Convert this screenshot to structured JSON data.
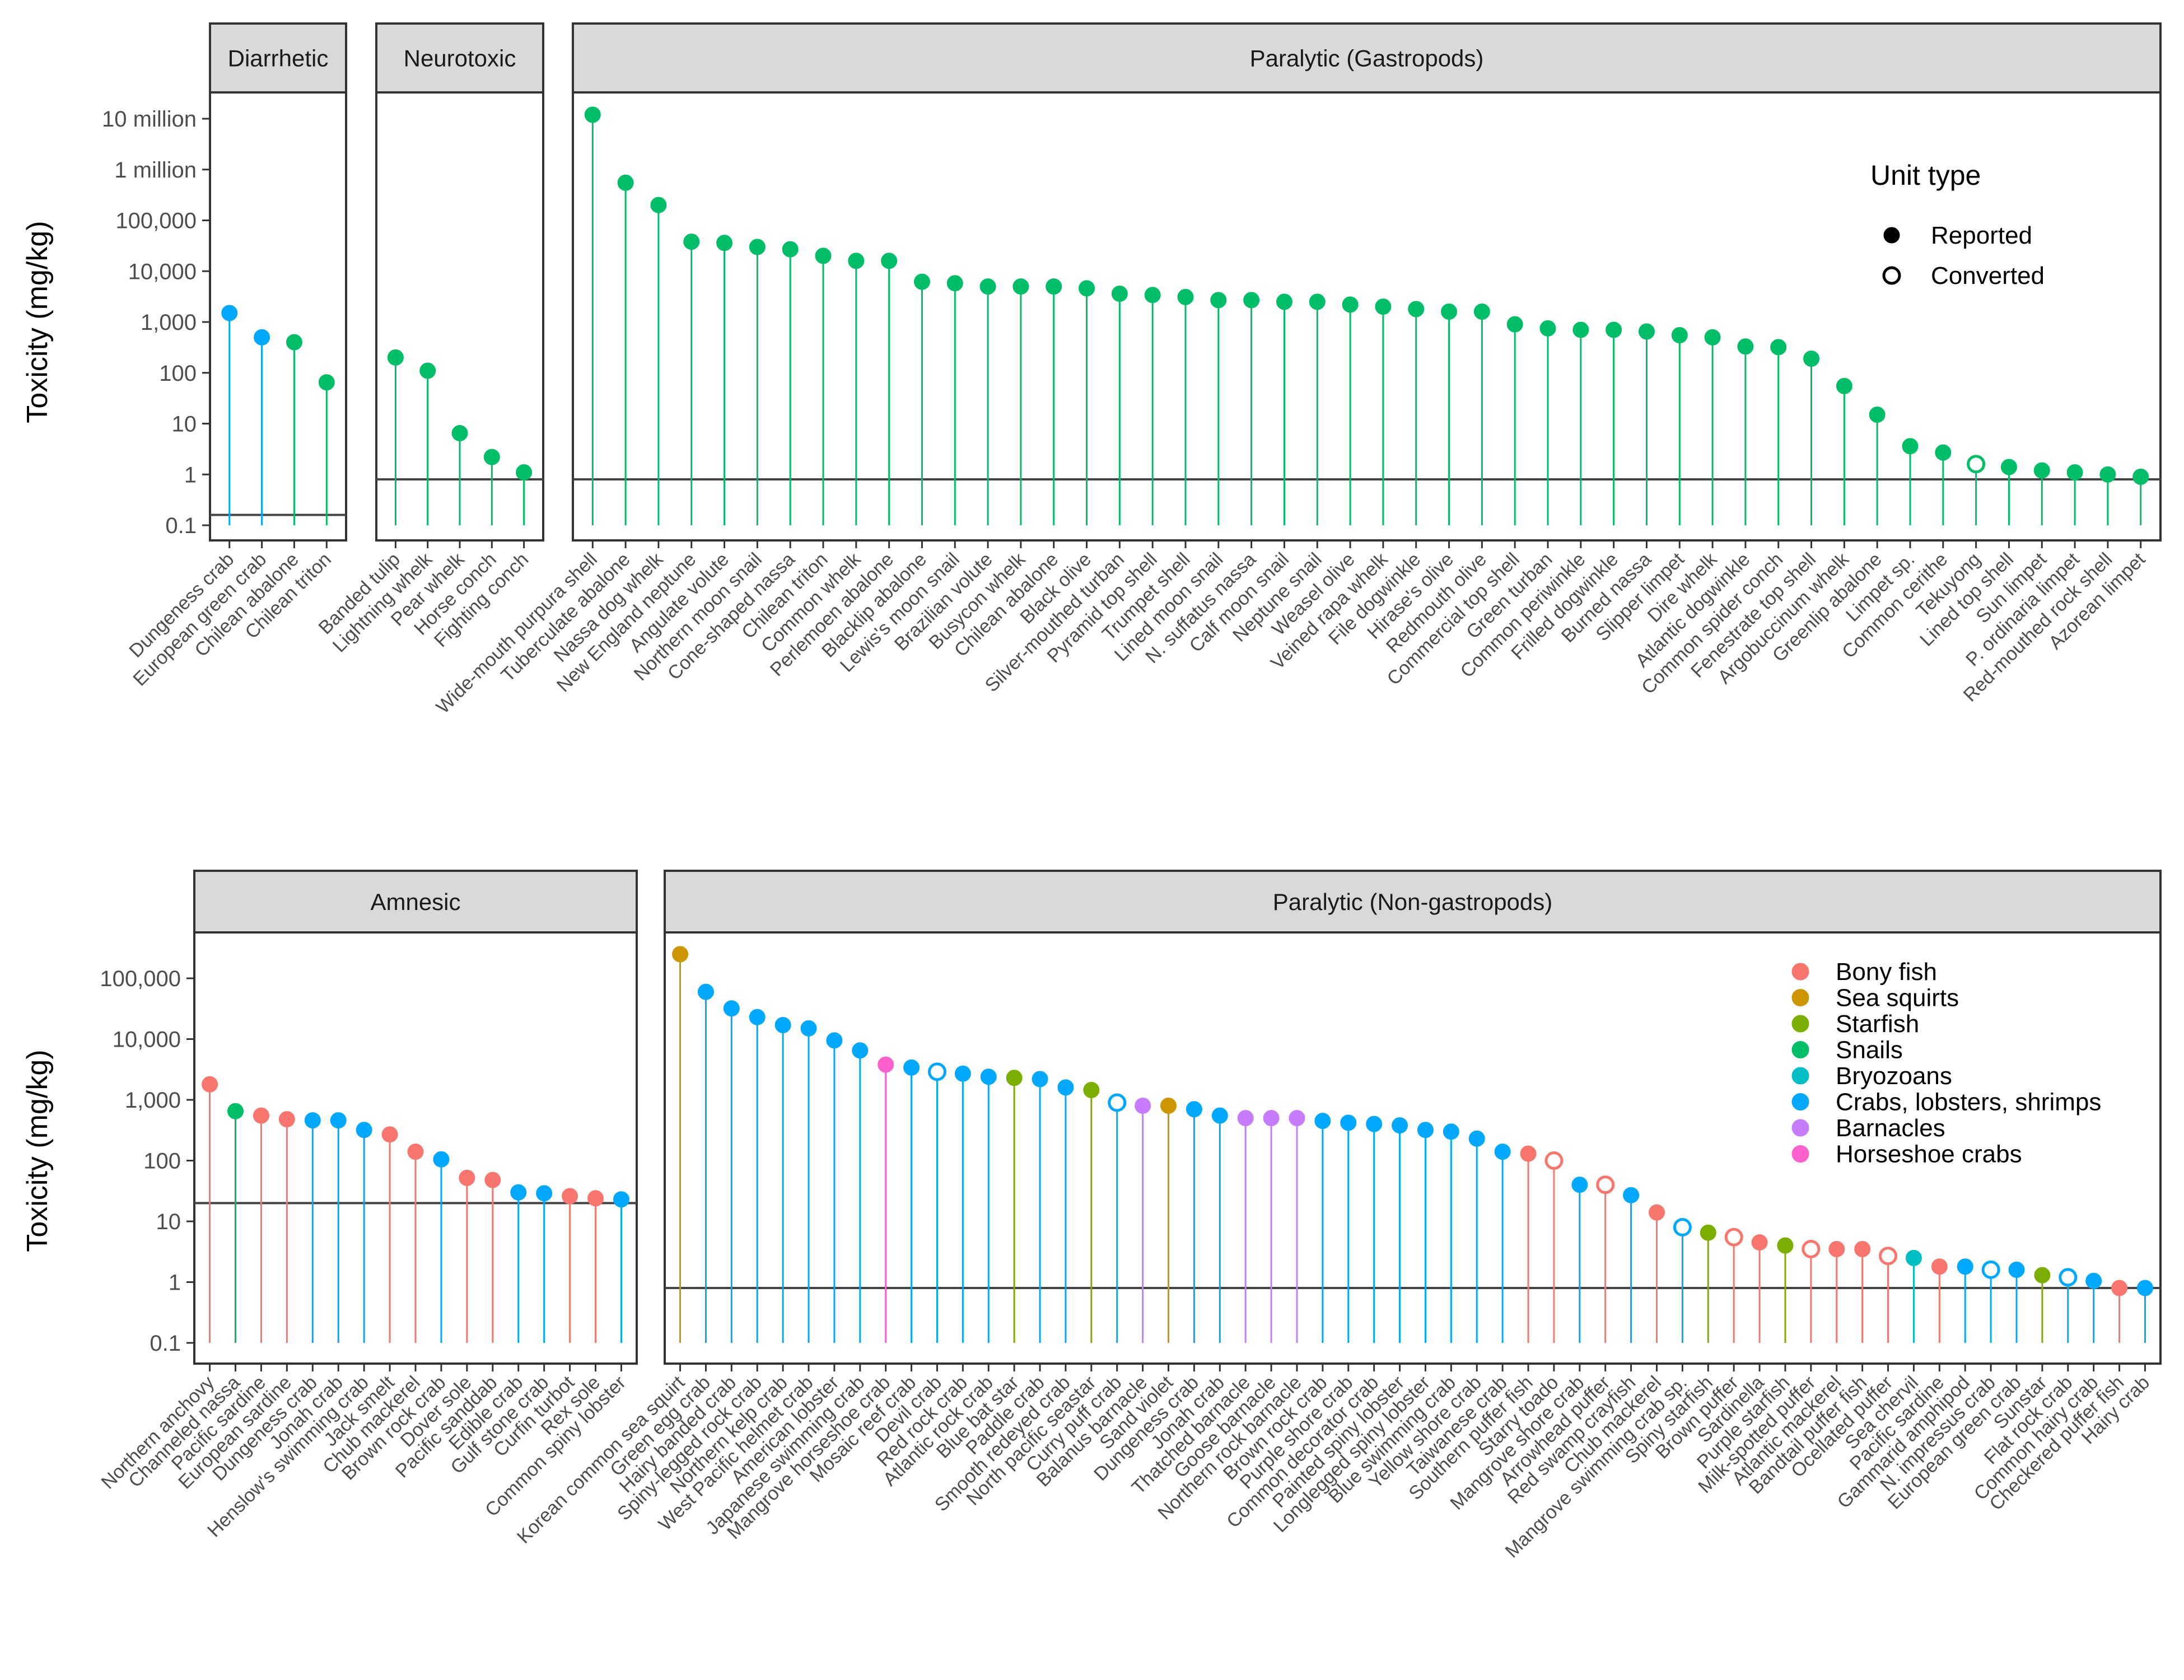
{
  "y_title": "Toxicity (mg/kg)",
  "chart_data": [
    {
      "type": "lollipop",
      "panel": "Diarrhetic",
      "y_scale": "log10",
      "ylim": [
        0.1,
        10000000
      ],
      "y_ticks": [
        0.1,
        1,
        10,
        100,
        1000,
        10000,
        100000,
        1000000,
        10000000
      ],
      "y_tick_labels": [
        "0.1",
        "1",
        "10",
        "100",
        "1,000",
        "10,000",
        "100,000",
        "1 million",
        "10 million"
      ],
      "reference_line": 0.16,
      "categories": [
        "Dungeness crab",
        "European green crab",
        "Chilean abalone",
        "Chilean triton"
      ],
      "values": [
        1500,
        500,
        400,
        65
      ],
      "groups": [
        "Crabs, lobsters, shrimps",
        "Crabs, lobsters, shrimps",
        "Snails",
        "Snails"
      ],
      "unit_type": [
        "R",
        "R",
        "R",
        "R"
      ]
    },
    {
      "type": "lollipop",
      "panel": "Neurotoxic",
      "y_scale": "log10",
      "ylim": [
        0.1,
        10000000
      ],
      "reference_line": 0.8,
      "categories": [
        "Banded tulip",
        "Lightning whelk",
        "Pear whelk",
        "Horse conch",
        "Fighting conch"
      ],
      "values": [
        200,
        110,
        6.5,
        2.2,
        1.1
      ],
      "groups": [
        "Snails",
        "Snails",
        "Snails",
        "Snails",
        "Snails"
      ],
      "unit_type": [
        "R",
        "R",
        "R",
        "R",
        "R"
      ]
    },
    {
      "type": "lollipop",
      "panel": "Paralytic (Gastropods)",
      "y_scale": "log10",
      "ylim": [
        0.1,
        10000000
      ],
      "reference_line": 0.8,
      "categories": [
        "Wide-mouth purpura shell",
        "Tuberculate abalone",
        "Nassa dog whelk",
        "New England neptune",
        "Angulate volute",
        "Northern moon snail",
        "Cone-shaped nassa",
        "Chilean triton",
        "Common whelk",
        "Perlemoen abalone",
        "Blacklip abalone",
        "Lewis's moon snail",
        "Brazilian volute",
        "Busycon whelk",
        "Chilean abalone",
        "Black olive",
        "Silver-mouthed turban",
        "Pyramid top shell",
        "Trumpet shell",
        "Lined moon snail",
        "N. suffatus nassa",
        "Calf moon snail",
        "Neptune snail",
        "Weasel olive",
        "Veined rapa whelk",
        "File dogwinkle",
        "Hirase's olive",
        "Redmouth olive",
        "Commercial top shell",
        "Green turban",
        "Common periwinkle",
        "Frilled dogwinkle",
        "Burned nassa",
        "Slipper limpet",
        "Dire whelk",
        "Atlantic dogwinkle",
        "Common spider conch",
        "Fenestrate top shell",
        "Argobuccinum whelk",
        "Greenlip abalone",
        "Limpet sp.",
        "Common cerithe",
        "Tekuyong",
        "Lined top shell",
        "Sun limpet",
        "P. ordinaria limpet",
        "Red-mouthed rock shell",
        "Azorean limpet"
      ],
      "values": [
        12000000,
        550000,
        200000,
        38000,
        36000,
        30000,
        27000,
        20000,
        16000,
        16000,
        6200,
        5800,
        5000,
        5000,
        5000,
        4600,
        3600,
        3400,
        3100,
        2700,
        2700,
        2500,
        2500,
        2200,
        2000,
        1800,
        1600,
        1600,
        900,
        750,
        700,
        700,
        650,
        550,
        500,
        330,
        320,
        190,
        55,
        15,
        3.6,
        2.7,
        1.6,
        1.4,
        1.2,
        1.1,
        1.0,
        0.9
      ],
      "groups": "Snails (all)",
      "unit_type": [
        "R",
        "R",
        "R",
        "R",
        "R",
        "R",
        "R",
        "R",
        "R",
        "R",
        "R",
        "R",
        "R",
        "R",
        "R",
        "R",
        "R",
        "R",
        "R",
        "R",
        "R",
        "R",
        "R",
        "R",
        "R",
        "R",
        "R",
        "R",
        "R",
        "R",
        "R",
        "R",
        "R",
        "R",
        "R",
        "R",
        "R",
        "R",
        "R",
        "R",
        "R",
        "R",
        "C",
        "R",
        "R",
        "R",
        "R",
        "R"
      ]
    },
    {
      "type": "lollipop",
      "panel": "Amnesic",
      "y_scale": "log10",
      "ylim": [
        0.1,
        200000
      ],
      "y_ticks": [
        0.1,
        1,
        10,
        100,
        1000,
        10000,
        100000
      ],
      "y_tick_labels": [
        "0.1",
        "1",
        "10",
        "100",
        "1,000",
        "10,000",
        "100,000"
      ],
      "reference_line": 20,
      "categories": [
        "Northern anchovy",
        "Channeled nassa",
        "Pacific sardine",
        "European sardine",
        "Dungeness crab",
        "Jonah crab",
        "Henslow's swimming crab",
        "Jack smelt",
        "Chub mackerel",
        "Brown rock crab",
        "Dover sole",
        "Pacific sanddab",
        "Edible crab",
        "Gulf stone crab",
        "Curfin turbot",
        "Rex sole",
        "Common spiny lobster"
      ],
      "values": [
        1800,
        650,
        550,
        480,
        460,
        460,
        320,
        270,
        140,
        105,
        52,
        48,
        30,
        29,
        26,
        24,
        23
      ],
      "groups": [
        "Bony fish",
        "Snails",
        "Bony fish",
        "Bony fish",
        "Crabs, lobsters, shrimps",
        "Crabs, lobsters, shrimps",
        "Crabs, lobsters, shrimps",
        "Bony fish",
        "Bony fish",
        "Crabs, lobsters, shrimps",
        "Bony fish",
        "Bony fish",
        "Crabs, lobsters, shrimps",
        "Crabs, lobsters, shrimps",
        "Bony fish",
        "Bony fish",
        "Crabs, lobsters, shrimps"
      ],
      "unit_type": [
        "R",
        "R",
        "R",
        "R",
        "R",
        "R",
        "R",
        "R",
        "R",
        "R",
        "R",
        "R",
        "R",
        "R",
        "R",
        "R",
        "R"
      ]
    },
    {
      "type": "lollipop",
      "panel": "Paralytic (Non-gastropods)",
      "y_scale": "log10",
      "ylim": [
        0.1,
        200000
      ],
      "reference_line": 0.8,
      "categories": [
        "Korean common sea squirt",
        "Green egg crab",
        "Hairy banded crab",
        "Spiny-legged rock crab",
        "Northern kelp crab",
        "West Pacific helmet crab",
        "American lobster",
        "Japanese swimming crab",
        "Mangrove horseshoe crab",
        "Mosaic reef crab",
        "Devil crab",
        "Red rock crab",
        "Atlantic rock crab",
        "Blue bat star",
        "Paddle crab",
        "Smooth redeyed crab",
        "North pacific seastar",
        "Curry puff crab",
        "Balanus barnacle",
        "Sand violet",
        "Dungeness crab",
        "Jonah crab",
        "Thatched barnacle",
        "Goose barnacle",
        "Northern rock barnacle",
        "Brown rock crab",
        "Purple shore crab",
        "Common decorator crab",
        "Painted spiny lobster",
        "Longlegged spiny lobster",
        "Blue swimming crab",
        "Yellow shore crab",
        "Taiwanese crab",
        "Southern puffer fish",
        "Starry toado",
        "Mangrove shore crab",
        "Arrowhead puffer",
        "Red swamp crayfish",
        "Chub mackerel",
        "Mangrove swimming crab sp.",
        "Spiny starfish",
        "Brown puffer",
        "Sardinella",
        "Purple starfish",
        "Milk-spotted puffer",
        "Atlantic mackerel",
        "Bandtail puffer fish",
        "Ocellated puffer",
        "Sea chervil",
        "Pacific sardine",
        "Gammarid amphipod",
        "N. impressus crab",
        "European green crab",
        "Sunstar",
        "Flat rock crab",
        "Common hairy crab",
        "Checkered puffer fish",
        "Hairy crab"
      ],
      "values": [
        250000,
        60000,
        32000,
        23000,
        17000,
        15000,
        9500,
        6500,
        3800,
        3400,
        2900,
        2700,
        2400,
        2300,
        2200,
        1600,
        1450,
        900,
        800,
        800,
        700,
        550,
        500,
        500,
        500,
        450,
        420,
        400,
        380,
        320,
        300,
        230,
        140,
        130,
        100,
        40,
        40,
        27,
        14,
        8,
        6.5,
        5.5,
        4.5,
        4,
        3.5,
        3.5,
        3.5,
        2.7,
        2.5,
        1.8,
        1.8,
        1.6,
        1.6,
        1.3,
        1.2,
        1.05,
        0.8,
        0.8
      ],
      "groups": [
        "Sea squirts",
        "Crabs, lobsters, shrimps",
        "Crabs, lobsters, shrimps",
        "Crabs, lobsters, shrimps",
        "Crabs, lobsters, shrimps",
        "Crabs, lobsters, shrimps",
        "Crabs, lobsters, shrimps",
        "Crabs, lobsters, shrimps",
        "Horseshoe crabs",
        "Crabs, lobsters, shrimps",
        "Crabs, lobsters, shrimps",
        "Crabs, lobsters, shrimps",
        "Crabs, lobsters, shrimps",
        "Starfish",
        "Crabs, lobsters, shrimps",
        "Crabs, lobsters, shrimps",
        "Starfish",
        "Crabs, lobsters, shrimps",
        "Barnacles",
        "Sea squirts",
        "Crabs, lobsters, shrimps",
        "Crabs, lobsters, shrimps",
        "Barnacles",
        "Barnacles",
        "Barnacles",
        "Crabs, lobsters, shrimps",
        "Crabs, lobsters, shrimps",
        "Crabs, lobsters, shrimps",
        "Crabs, lobsters, shrimps",
        "Crabs, lobsters, shrimps",
        "Crabs, lobsters, shrimps",
        "Crabs, lobsters, shrimps",
        "Crabs, lobsters, shrimps",
        "Bony fish",
        "Bony fish",
        "Crabs, lobsters, shrimps",
        "Bony fish",
        "Crabs, lobsters, shrimps",
        "Bony fish",
        "Crabs, lobsters, shrimps",
        "Starfish",
        "Bony fish",
        "Bony fish",
        "Starfish",
        "Bony fish",
        "Bony fish",
        "Bony fish",
        "Bony fish",
        "Bryozoans",
        "Bony fish",
        "Crabs, lobsters, shrimps",
        "Crabs, lobsters, shrimps",
        "Crabs, lobsters, shrimps",
        "Starfish",
        "Crabs, lobsters, shrimps",
        "Crabs, lobsters, shrimps",
        "Bony fish",
        "Crabs, lobsters, shrimps"
      ],
      "unit_type": [
        "R",
        "R",
        "R",
        "R",
        "R",
        "R",
        "R",
        "R",
        "R",
        "R",
        "C",
        "R",
        "R",
        "R",
        "R",
        "R",
        "R",
        "C",
        "R",
        "R",
        "R",
        "R",
        "R",
        "R",
        "R",
        "R",
        "R",
        "R",
        "R",
        "R",
        "R",
        "R",
        "R",
        "R",
        "C",
        "R",
        "C",
        "R",
        "R",
        "C",
        "R",
        "C",
        "R",
        "R",
        "C",
        "R",
        "R",
        "C",
        "R",
        "R",
        "R",
        "C",
        "R",
        "R",
        "C",
        "R",
        "R",
        "R"
      ]
    }
  ],
  "legend_unit": {
    "title": "Unit type",
    "items": [
      {
        "label": "Reported",
        "symbol": "filled"
      },
      {
        "label": "Converted",
        "symbol": "open"
      }
    ]
  },
  "legend_groups": {
    "items": [
      {
        "label": "Bony fish",
        "color": "#F8766D"
      },
      {
        "label": "Sea squirts",
        "color": "#CD9600"
      },
      {
        "label": "Starfish",
        "color": "#7CAE00"
      },
      {
        "label": "Snails",
        "color": "#00BE67"
      },
      {
        "label": "Bryozoans",
        "color": "#00BFC4"
      },
      {
        "label": "Crabs, lobsters, shrimps",
        "color": "#00A9FF"
      },
      {
        "label": "Barnacles",
        "color": "#C77CFF"
      },
      {
        "label": "Horseshoe crabs",
        "color": "#FF61CC"
      }
    ]
  },
  "colors": {
    "strip_bg": "#d9d9d9",
    "panel_border": "#333333",
    "reference_line": "#444444"
  }
}
